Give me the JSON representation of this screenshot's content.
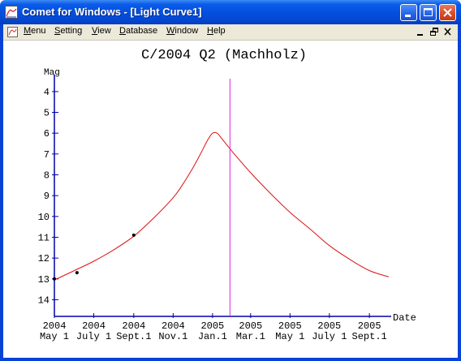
{
  "window": {
    "title": "Comet for Windows - [Light Curve1]"
  },
  "menu": {
    "items": [
      {
        "label": "Menu"
      },
      {
        "label": "Setting"
      },
      {
        "label": "View"
      },
      {
        "label": "Database"
      },
      {
        "label": "Window"
      },
      {
        "label": "Help"
      }
    ]
  },
  "colors": {
    "curve": "#dd1111",
    "marker_line": "#dd22dd",
    "axis": "#0000aa",
    "points": "#000000"
  },
  "chart_data": {
    "type": "line",
    "title": "C/2004 Q2 (Machholz)",
    "ylabel": "Mag",
    "xlabel": "Date",
    "y_inverted": true,
    "ylim": [
      3.5,
      14.8
    ],
    "yticks": [
      4,
      5,
      6,
      7,
      8,
      9,
      10,
      11,
      12,
      13,
      14
    ],
    "xlim": [
      "2004-05-01",
      "2005-10-01"
    ],
    "xticks": [
      {
        "date": "2004-05-01",
        "year": "2004",
        "label": "May 1"
      },
      {
        "date": "2004-07-01",
        "year": "2004",
        "label": "July 1"
      },
      {
        "date": "2004-09-01",
        "year": "2004",
        "label": "Sept.1"
      },
      {
        "date": "2004-11-01",
        "year": "2004",
        "label": "Nov.1"
      },
      {
        "date": "2005-01-01",
        "year": "2005",
        "label": "Jan.1"
      },
      {
        "date": "2005-03-01",
        "year": "2005",
        "label": "Mar.1"
      },
      {
        "date": "2005-05-01",
        "year": "2005",
        "label": "May 1"
      },
      {
        "date": "2005-07-01",
        "year": "2005",
        "label": "July 1"
      },
      {
        "date": "2005-09-01",
        "year": "2005",
        "label": "Sept.1"
      }
    ],
    "series": [
      {
        "curve": [
          {
            "x": "2004-05-01",
            "y": 13.05
          },
          {
            "x": "2004-06-01",
            "y": 12.6
          },
          {
            "x": "2004-07-01",
            "y": 12.15
          },
          {
            "x": "2004-08-01",
            "y": 11.6
          },
          {
            "x": "2004-09-01",
            "y": 10.95
          },
          {
            "x": "2004-10-01",
            "y": 10.1
          },
          {
            "x": "2004-11-01",
            "y": 9.1
          },
          {
            "x": "2004-11-15",
            "y": 8.5
          },
          {
            "x": "2004-12-01",
            "y": 7.7
          },
          {
            "x": "2004-12-15",
            "y": 6.9
          },
          {
            "x": "2004-12-25",
            "y": 6.3
          },
          {
            "x": "2005-01-01",
            "y": 6.0
          },
          {
            "x": "2005-01-08",
            "y": 6.0
          },
          {
            "x": "2005-01-15",
            "y": 6.25
          },
          {
            "x": "2005-02-01",
            "y": 6.9
          },
          {
            "x": "2005-03-01",
            "y": 7.9
          },
          {
            "x": "2005-04-01",
            "y": 8.9
          },
          {
            "x": "2005-05-01",
            "y": 9.8
          },
          {
            "x": "2005-06-01",
            "y": 10.6
          },
          {
            "x": "2005-07-01",
            "y": 11.4
          },
          {
            "x": "2005-08-01",
            "y": 12.05
          },
          {
            "x": "2005-09-01",
            "y": 12.6
          },
          {
            "x": "2005-10-01",
            "y": 12.9
          }
        ]
      }
    ],
    "observations": [
      {
        "x": "2004-05-01",
        "y": 13.0
      },
      {
        "x": "2004-06-05",
        "y": 12.7
      },
      {
        "x": "2004-09-01",
        "y": 10.9
      }
    ],
    "marker_date": "2005-01-28",
    "grid": false,
    "legend": "none"
  }
}
